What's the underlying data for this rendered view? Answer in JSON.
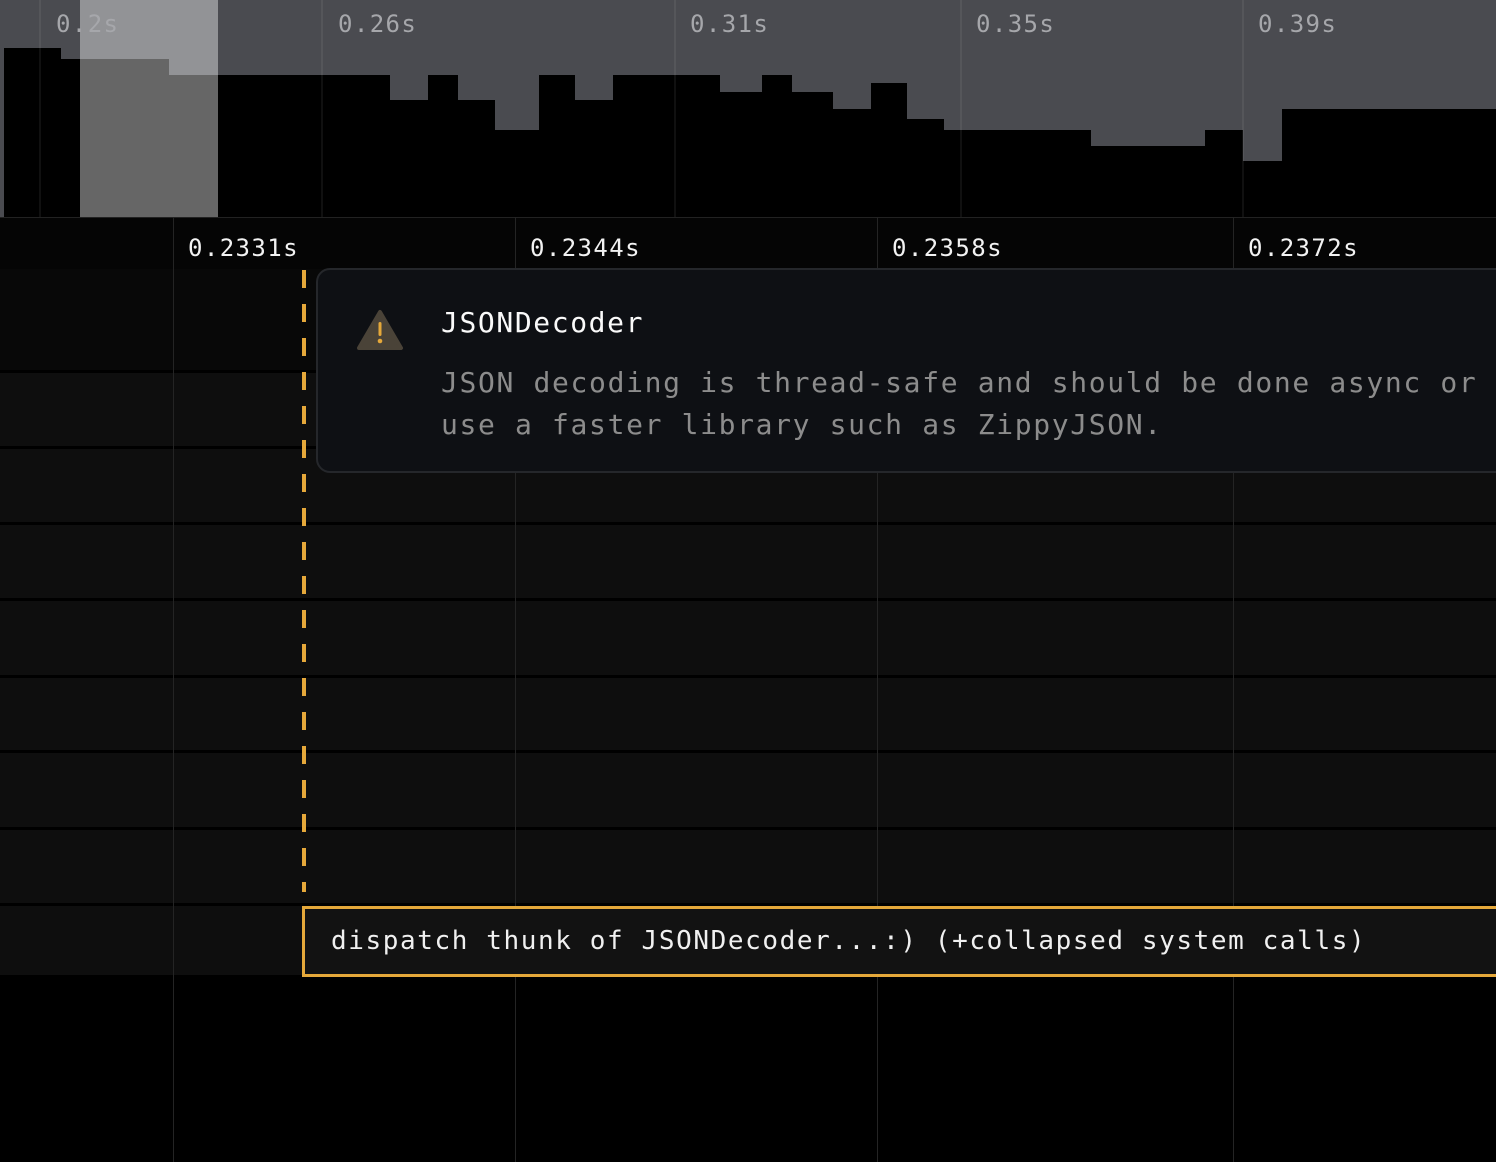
{
  "minimap": {
    "ticks": [
      "0.2s",
      "0.26s",
      "0.31s",
      "0.35s",
      "0.39s"
    ]
  },
  "axis": {
    "ticks": [
      "0.2331s",
      "0.2344s",
      "0.2358s",
      "0.2372s"
    ]
  },
  "tooltip": {
    "icon": "warning-triangle-icon",
    "title": "JSONDecoder",
    "body": "JSON decoding is thread-safe and should be done async or use a faster library such as ZippyJSON."
  },
  "selected_frame": {
    "label": "dispatch thunk of JSONDecoder...:) (+collapsed system calls)"
  },
  "colors": {
    "accent": "#e5a83a",
    "minimap_fill": "#4a4b50"
  }
}
